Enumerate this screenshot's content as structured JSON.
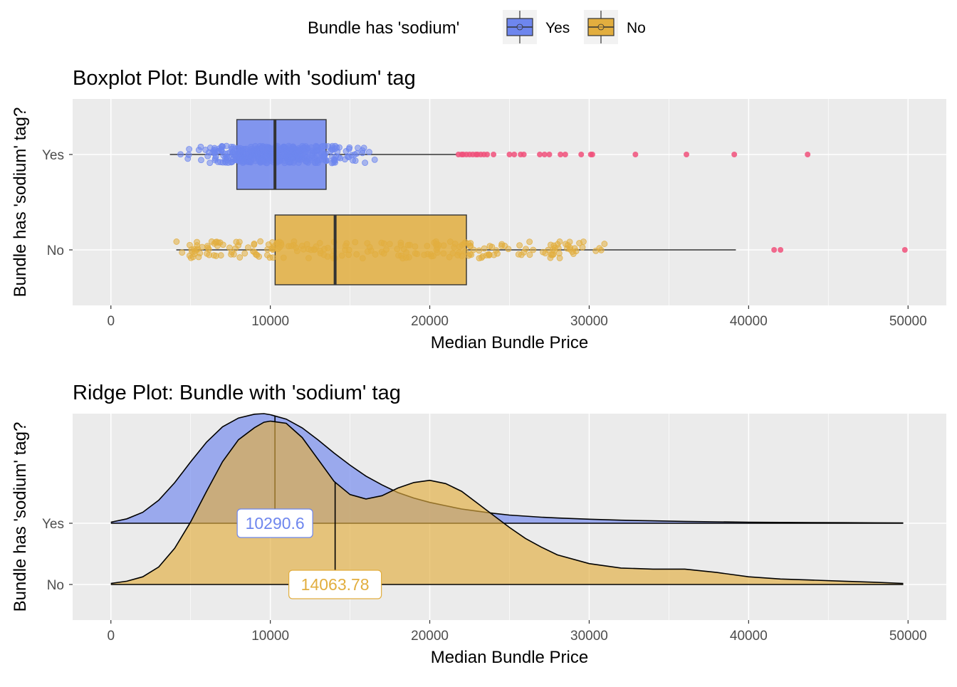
{
  "legend": {
    "title": "Bundle has 'sodium'",
    "placement": "top",
    "items": [
      {
        "label": "Yes",
        "color": "#6E86EE"
      },
      {
        "label": "No",
        "color": "#E2AE3F"
      }
    ]
  },
  "colors": {
    "yes_fill": "#6E86EE",
    "no_fill": "#E2AE3F",
    "yes_point": "#6E86EE",
    "no_point": "#E2AE3F",
    "outlier": "#F0507A",
    "panel_bg": "#EBEBEB",
    "grid": "#FFFFFF"
  },
  "chart_data": [
    {
      "type": "boxplot",
      "title": "Boxplot Plot: Bundle with 'sodium' tag",
      "xlabel": "Median Bundle Price",
      "ylabel": "Bundle has 'sodium' tag?",
      "xlim": [
        -2400,
        52400
      ],
      "xticks": [
        0,
        10000,
        20000,
        30000,
        40000,
        50000
      ],
      "categories": [
        "Yes",
        "No"
      ],
      "grid": true,
      "series": [
        {
          "name": "Yes",
          "whisker_low": 3700,
          "q1": 7900,
          "median": 10290.6,
          "q3": 13500,
          "whisker_high": 21700,
          "points_range": [
            3000,
            18600
          ],
          "points_count": 420,
          "outliers": [
            21800,
            22000,
            22100,
            22300,
            22500,
            22700,
            22900,
            23000,
            23200,
            23400,
            23600,
            24000,
            25000,
            25300,
            25700,
            25900,
            26900,
            27200,
            27500,
            28200,
            28500,
            29500,
            30100,
            30200,
            32900,
            36100,
            39100,
            43700
          ]
        },
        {
          "name": "No",
          "whisker_low": 4100,
          "q1": 10300,
          "median": 14063.78,
          "q3": 22300,
          "whisker_high": 39200,
          "points_range": [
            4000,
            31000
          ],
          "points_count": 230,
          "outliers": [
            41600,
            42000,
            49800
          ]
        }
      ]
    },
    {
      "type": "ridge",
      "title": "Ridge Plot: Bundle with 'sodium' tag",
      "xlabel": "Median Bundle Price",
      "ylabel": "Bundle has 'sodium' tag?",
      "xlim": [
        -2400,
        52400
      ],
      "xticks": [
        0,
        10000,
        20000,
        30000,
        40000,
        50000
      ],
      "categories": [
        "Yes",
        "No"
      ],
      "grid": true,
      "density_x": [
        0,
        1000,
        2000,
        3000,
        4000,
        5000,
        6000,
        7000,
        8000,
        9000,
        9600,
        10000,
        11000,
        12000,
        13000,
        14000,
        15000,
        16000,
        17000,
        18000,
        19000,
        20000,
        21000,
        22000,
        23000,
        24000,
        25000,
        26000,
        27000,
        28000,
        30000,
        32000,
        34000,
        36000,
        38000,
        40000,
        42000,
        44000,
        46000,
        48000,
        49700
      ],
      "series": [
        {
          "name": "Yes",
          "median": 10290.6,
          "median_label": "10290.6",
          "density": [
            0.01,
            0.04,
            0.1,
            0.21,
            0.37,
            0.56,
            0.74,
            0.88,
            0.96,
            0.995,
            1.0,
            0.99,
            0.95,
            0.87,
            0.76,
            0.64,
            0.53,
            0.43,
            0.35,
            0.28,
            0.23,
            0.19,
            0.16,
            0.13,
            0.11,
            0.09,
            0.075,
            0.065,
            0.055,
            0.048,
            0.037,
            0.028,
            0.022,
            0.017,
            0.013,
            0.01,
            0.008,
            0.006,
            0.005,
            0.004,
            0.003
          ]
        },
        {
          "name": "No",
          "median": 14063.78,
          "median_label": "14063.78",
          "density": [
            0.01,
            0.03,
            0.07,
            0.16,
            0.33,
            0.57,
            0.85,
            1.12,
            1.32,
            1.43,
            1.48,
            1.49,
            1.47,
            1.34,
            1.14,
            0.94,
            0.82,
            0.78,
            0.81,
            0.88,
            0.93,
            0.95,
            0.92,
            0.85,
            0.74,
            0.63,
            0.52,
            0.42,
            0.34,
            0.27,
            0.19,
            0.15,
            0.14,
            0.14,
            0.11,
            0.07,
            0.05,
            0.04,
            0.03,
            0.02,
            0.01
          ]
        }
      ]
    }
  ]
}
